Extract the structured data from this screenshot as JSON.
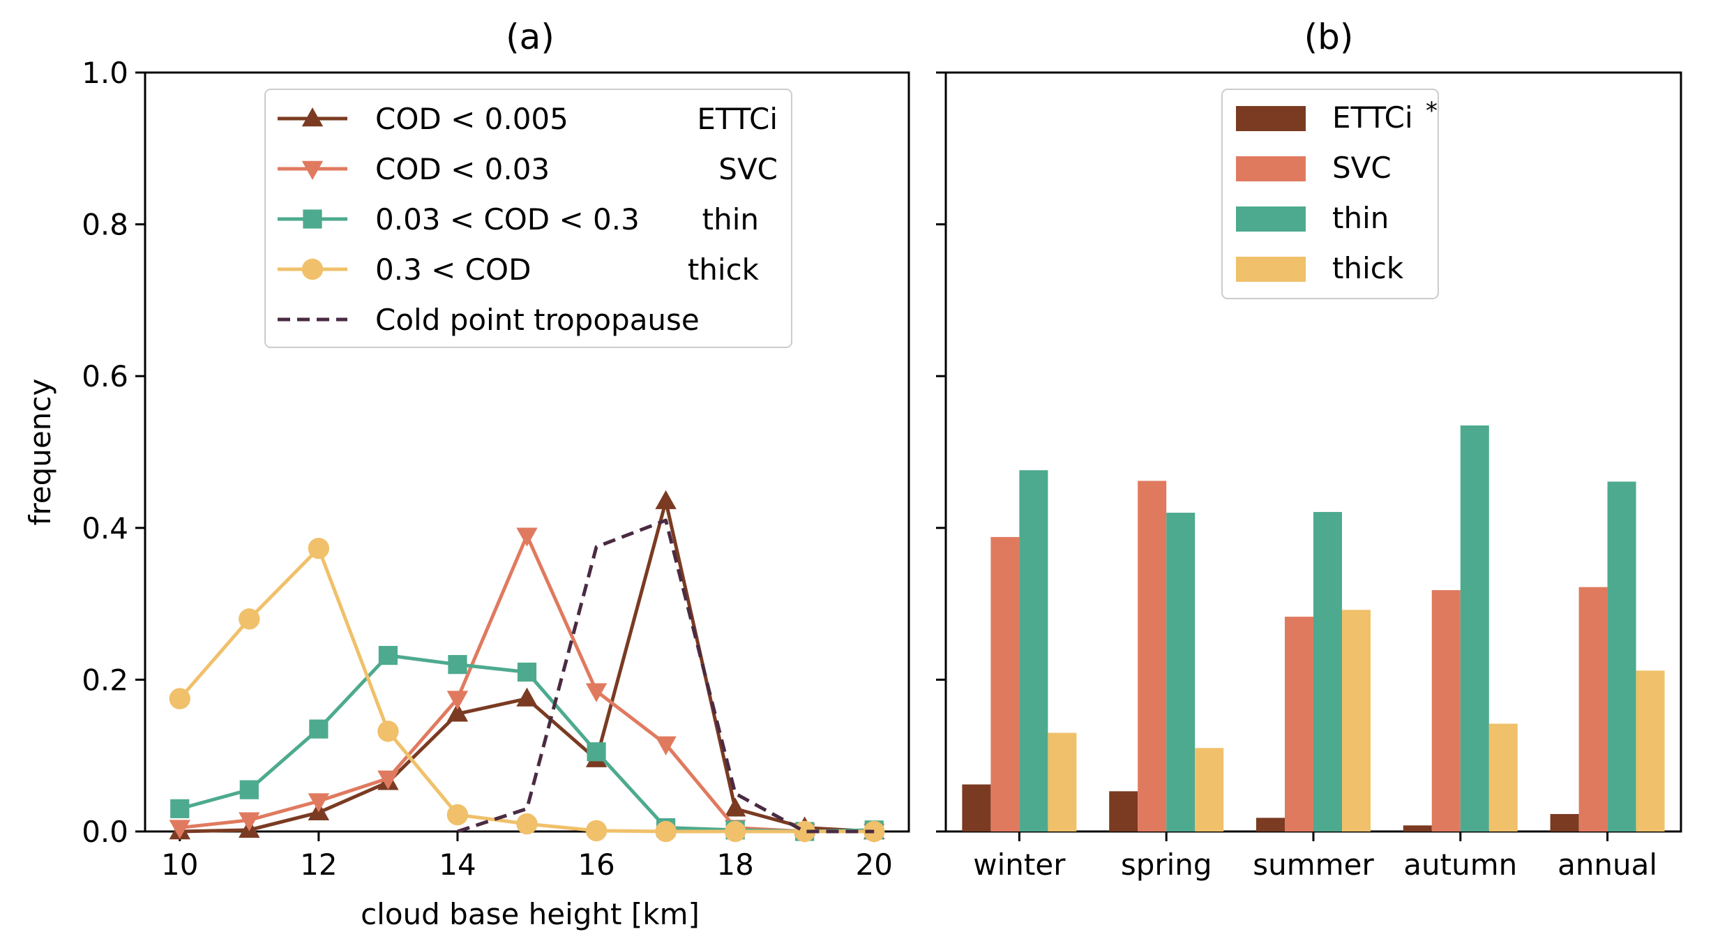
{
  "chart_data": [
    {
      "type": "line",
      "title": "(a)",
      "xlabel": "cloud base height [km]",
      "ylabel": "frequency",
      "xlim": [
        9.5,
        20.5
      ],
      "ylim": [
        0,
        1.0
      ],
      "xticks": [
        10,
        12,
        14,
        16,
        18,
        20
      ],
      "xtick_labels": [
        "10",
        "12",
        "14",
        "16",
        "18",
        "20"
      ],
      "yticks": [
        0,
        0.2,
        0.4,
        0.6,
        0.8,
        1.0
      ],
      "ytick_labels": [
        "0.0",
        "0.2",
        "0.4",
        "0.6",
        "0.8",
        "1.0"
      ],
      "legend_position": "top-center",
      "series": [
        {
          "name": "COD < 0.005",
          "tag": "ETTCi",
          "color": "#7a3b22",
          "marker": "triangle-up",
          "dashed": false,
          "x": [
            10,
            11,
            12,
            13,
            14,
            15,
            16,
            17,
            18,
            19,
            20
          ],
          "y": [
            0.0,
            0.002,
            0.025,
            0.065,
            0.155,
            0.175,
            0.095,
            0.435,
            0.03,
            0.005,
            0.0
          ]
        },
        {
          "name": "COD < 0.03",
          "tag": "SVC",
          "color": "#e07a5f",
          "marker": "triangle-down",
          "dashed": false,
          "x": [
            10,
            11,
            12,
            13,
            14,
            15,
            16,
            17,
            18,
            19,
            20
          ],
          "y": [
            0.005,
            0.015,
            0.04,
            0.07,
            0.175,
            0.39,
            0.185,
            0.115,
            0.005,
            0.0,
            0.0
          ]
        },
        {
          "name": "0.03 < COD < 0.3",
          "tag": "thin",
          "color": "#4daa8e",
          "marker": "square",
          "dashed": false,
          "x": [
            10,
            11,
            12,
            13,
            14,
            15,
            16,
            17,
            18,
            19,
            20
          ],
          "y": [
            0.03,
            0.055,
            0.135,
            0.232,
            0.22,
            0.21,
            0.105,
            0.005,
            0.002,
            0.0,
            0.002
          ]
        },
        {
          "name": "0.3 < COD",
          "tag": "thick",
          "color": "#f0c06a",
          "marker": "circle",
          "dashed": false,
          "x": [
            10,
            11,
            12,
            13,
            14,
            15,
            16,
            17,
            18,
            19,
            20
          ],
          "y": [
            0.175,
            0.28,
            0.373,
            0.132,
            0.022,
            0.01,
            0.001,
            0.0,
            0.0,
            0.0,
            0.0
          ]
        },
        {
          "name": "Cold point tropopause",
          "tag": "",
          "color": "#4a2b42",
          "marker": "none",
          "dashed": true,
          "x": [
            14,
            15,
            16,
            17,
            18,
            19,
            20
          ],
          "y": [
            0.0,
            0.03,
            0.375,
            0.41,
            0.05,
            0.0,
            0.0
          ]
        }
      ]
    },
    {
      "type": "bar",
      "title": "(b)",
      "categories": [
        "winter",
        "spring",
        "summer",
        "autumn",
        "annual"
      ],
      "ylim": [
        0,
        1.0
      ],
      "legend_position": "top-center",
      "series": [
        {
          "name": "ETTCi",
          "superscript": "*",
          "color": "#7a3b22",
          "values": [
            0.062,
            0.053,
            0.018,
            0.008,
            0.023
          ]
        },
        {
          "name": "SVC",
          "superscript": "",
          "color": "#e07a5f",
          "values": [
            0.388,
            0.462,
            0.283,
            0.318,
            0.322
          ]
        },
        {
          "name": "thin",
          "superscript": "",
          "color": "#4daa8e",
          "values": [
            0.476,
            0.42,
            0.421,
            0.535,
            0.461
          ]
        },
        {
          "name": "thick",
          "superscript": "",
          "color": "#f0c06a",
          "values": [
            0.13,
            0.11,
            0.292,
            0.142,
            0.212
          ]
        }
      ]
    }
  ]
}
